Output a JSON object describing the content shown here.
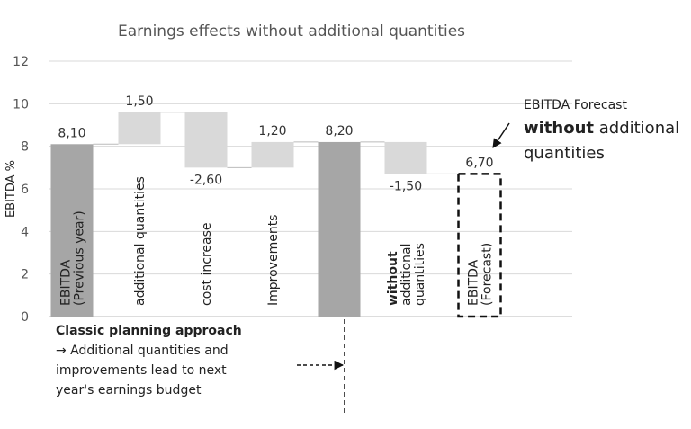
{
  "chart_data": {
    "type": "waterfall",
    "title": "Earnings effects without additional quantities",
    "y_label": "EBITDA %",
    "ylim": [
      0,
      12
    ],
    "yticks": [
      0,
      2,
      4,
      6,
      8,
      10,
      12
    ],
    "grid": true,
    "category_lines": [
      [
        "EBITDA",
        "(Previous year)"
      ],
      [
        "additional quantities"
      ],
      [
        "cost increase"
      ],
      [
        "Improvements"
      ],
      null,
      [
        "without",
        "additional",
        "quantities"
      ],
      [
        "EBITDA",
        "(Forecast)"
      ]
    ],
    "bold_first_line_of_category": 5,
    "values": [
      8.1,
      1.5,
      -2.6,
      1.2,
      8.2,
      -1.5,
      6.7
    ],
    "value_labels": [
      "8,10",
      "1,50",
      "-2,60",
      "1,20",
      "8,20",
      "-1,50",
      "6,70"
    ],
    "measure": [
      "total",
      "relative",
      "relative",
      "relative",
      "total",
      "relative",
      "total"
    ],
    "bar_style": [
      "fill",
      "fill",
      "fill",
      "fill",
      "fill",
      "fill",
      "dashed"
    ],
    "total_color": "#a6a6a6",
    "relative_color": "#d9d9d9",
    "left_note": {
      "heading": "Classic planning approach",
      "lines": [
        "→ Additional quantities and",
        "improvements lead to next",
        "year's earnings budget"
      ]
    },
    "callout": {
      "line1": "EBITDA Forecast",
      "bold": "without",
      "line2": " additional",
      "line3": "quantities"
    }
  }
}
